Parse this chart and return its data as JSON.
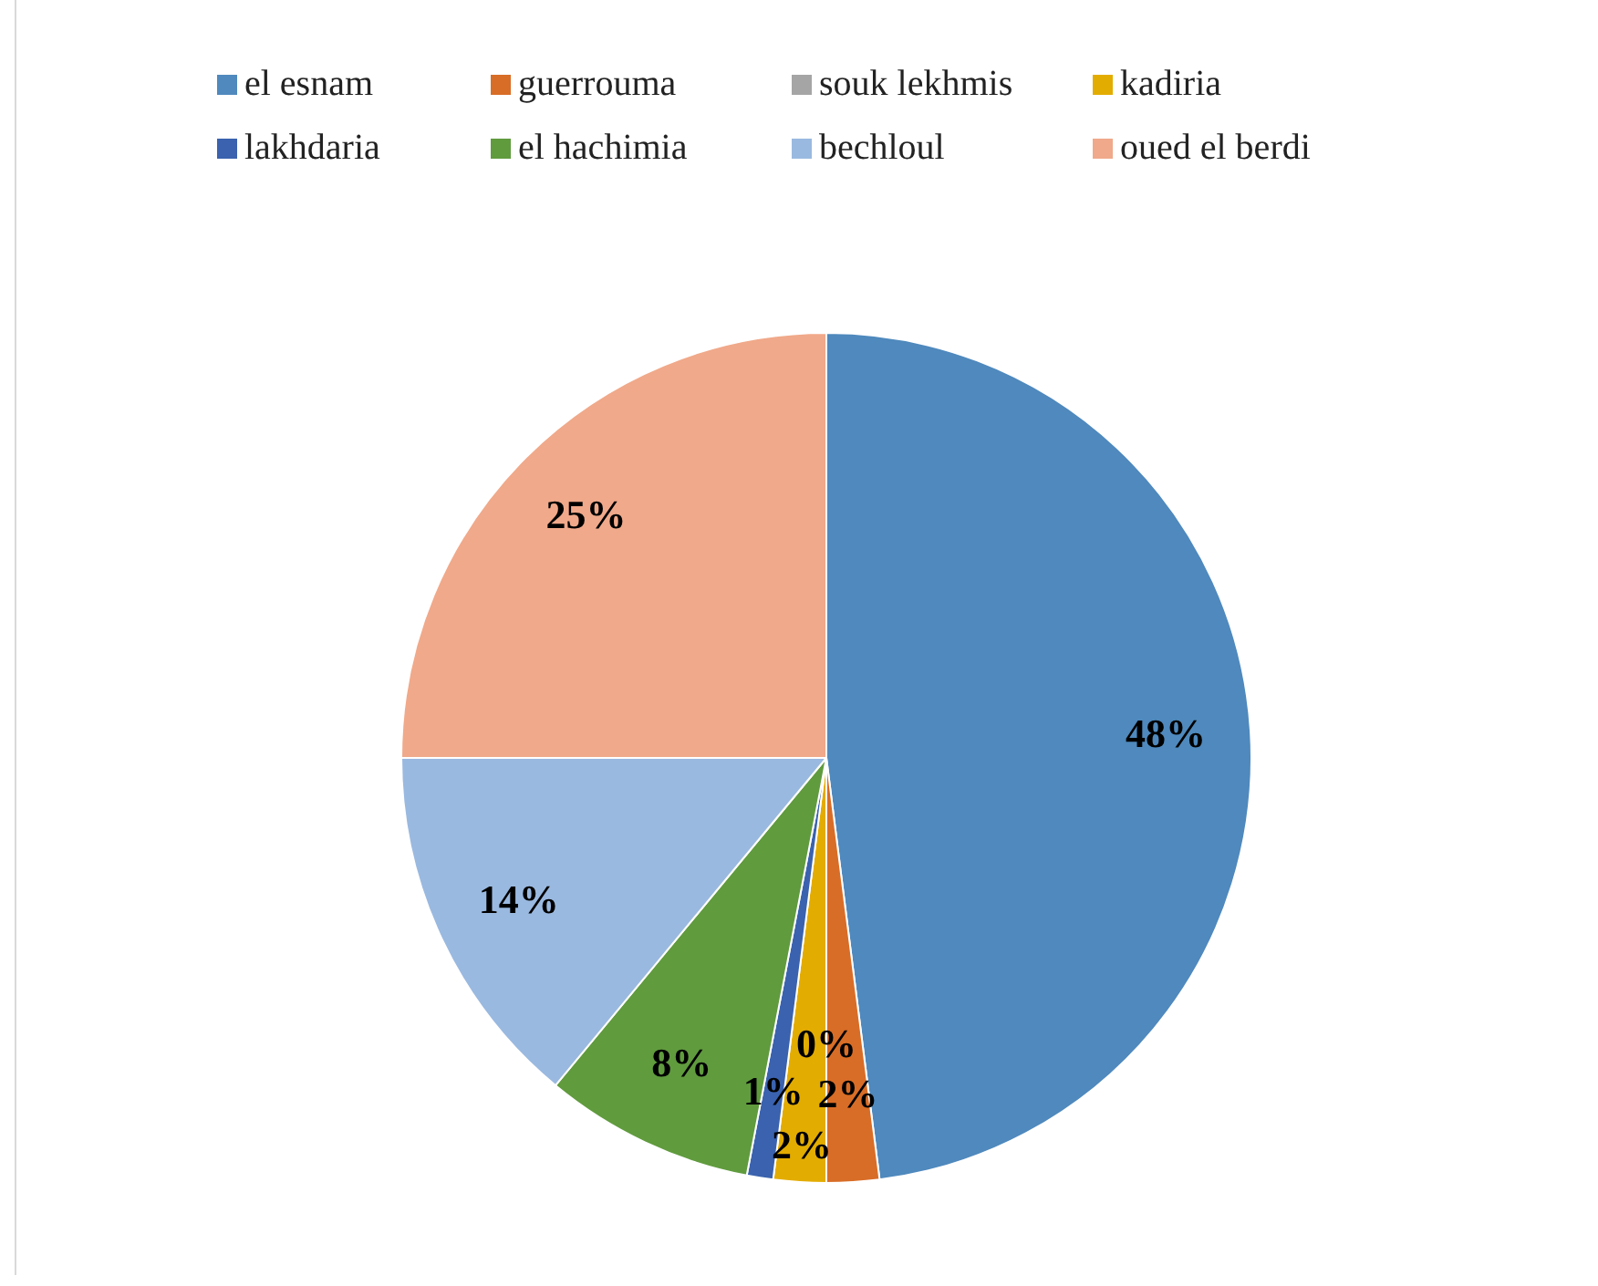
{
  "chart_data": {
    "type": "pie",
    "categories": [
      "el esnam",
      "guerrouma",
      "souk lekhmis",
      "kadiria",
      "lakhdaria",
      "el hachimia",
      "bechloul",
      "oued el berdi"
    ],
    "values": [
      48,
      2,
      0,
      2,
      1,
      8,
      14,
      25
    ],
    "colors": [
      "#4f89bd",
      "#d86d27",
      "#a5a5a5",
      "#e3ac00",
      "#3a62ae",
      "#609b3e",
      "#9ab9e0",
      "#f0a98a"
    ],
    "value_labels": [
      "48%",
      "2%",
      "0%",
      "2%",
      "1%",
      "8%",
      "14%",
      "25%"
    ],
    "legend": "top"
  }
}
